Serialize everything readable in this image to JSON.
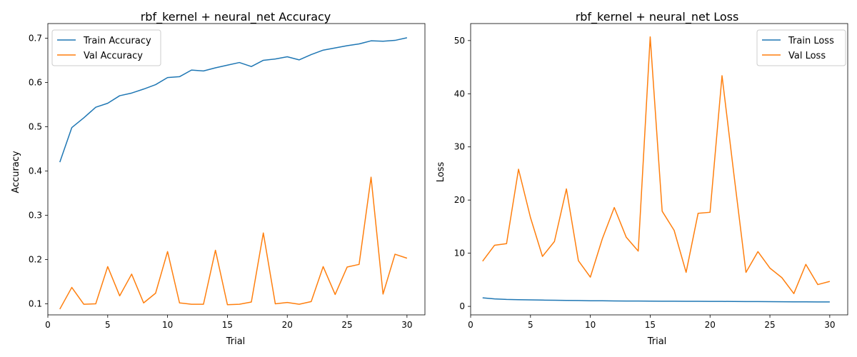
{
  "chart_data": [
    {
      "type": "line",
      "title": "rbf_kernel + neural_net Accuracy",
      "xlabel": "Trial",
      "ylabel": "Accuracy",
      "xlim": [
        0,
        31.5
      ],
      "ylim": [
        0.075,
        0.733
      ],
      "xticks": [
        0,
        5,
        10,
        15,
        20,
        25,
        30
      ],
      "yticks": [
        0.1,
        0.2,
        0.3,
        0.4,
        0.5,
        0.6,
        0.7
      ],
      "grid": false,
      "legend": "top-left",
      "x": [
        1,
        2,
        3,
        4,
        5,
        6,
        7,
        8,
        9,
        10,
        11,
        12,
        13,
        14,
        15,
        16,
        17,
        18,
        19,
        20,
        21,
        22,
        23,
        24,
        25,
        26,
        27,
        28,
        29,
        30
      ],
      "series": [
        {
          "name": "Train Accuracy",
          "color": "#1f77b4",
          "values": [
            0.42,
            0.498,
            0.52,
            0.544,
            0.553,
            0.57,
            0.576,
            0.585,
            0.595,
            0.611,
            0.613,
            0.628,
            0.626,
            0.633,
            0.639,
            0.645,
            0.636,
            0.65,
            0.653,
            0.658,
            0.651,
            0.663,
            0.673,
            0.678,
            0.683,
            0.687,
            0.694,
            0.693,
            0.695,
            0.701
          ]
        },
        {
          "name": "Val Accuracy",
          "color": "#ff7f0e",
          "values": [
            0.088,
            0.137,
            0.099,
            0.1,
            0.184,
            0.118,
            0.167,
            0.102,
            0.124,
            0.218,
            0.102,
            0.099,
            0.099,
            0.221,
            0.098,
            0.099,
            0.104,
            0.26,
            0.1,
            0.103,
            0.099,
            0.105,
            0.184,
            0.121,
            0.183,
            0.189,
            0.386,
            0.122,
            0.212,
            0.203
          ]
        }
      ]
    },
    {
      "type": "line",
      "title": "rbf_kernel + neural_net Loss",
      "xlabel": "Trial",
      "ylabel": "Loss",
      "xlim": [
        0,
        31.5
      ],
      "ylim": [
        -1.6,
        53.2
      ],
      "xticks": [
        0,
        5,
        10,
        15,
        20,
        25,
        30
      ],
      "yticks": [
        0,
        10,
        20,
        30,
        40,
        50
      ],
      "grid": false,
      "legend": "top-right",
      "x": [
        1,
        2,
        3,
        4,
        5,
        6,
        7,
        8,
        9,
        10,
        11,
        12,
        13,
        14,
        15,
        16,
        17,
        18,
        19,
        20,
        21,
        22,
        23,
        24,
        25,
        26,
        27,
        28,
        29,
        30
      ],
      "series": [
        {
          "name": "Train Loss",
          "color": "#1f77b4",
          "values": [
            1.6,
            1.4,
            1.3,
            1.25,
            1.22,
            1.18,
            1.15,
            1.12,
            1.1,
            1.05,
            1.05,
            1.02,
            1.0,
            1.0,
            0.98,
            0.97,
            0.97,
            0.96,
            0.95,
            0.93,
            0.93,
            0.92,
            0.9,
            0.9,
            0.88,
            0.86,
            0.85,
            0.85,
            0.84,
            0.83
          ]
        },
        {
          "name": "Val Loss",
          "color": "#ff7f0e",
          "values": [
            8.5,
            11.5,
            11.8,
            25.8,
            16.7,
            9.4,
            12.2,
            22.1,
            8.6,
            5.5,
            12.7,
            18.6,
            13.0,
            10.4,
            50.7,
            17.9,
            14.3,
            6.4,
            17.5,
            17.7,
            43.4,
            24.7,
            6.4,
            10.3,
            7.2,
            5.4,
            2.4,
            7.9,
            4.1,
            4.7
          ]
        }
      ]
    }
  ]
}
